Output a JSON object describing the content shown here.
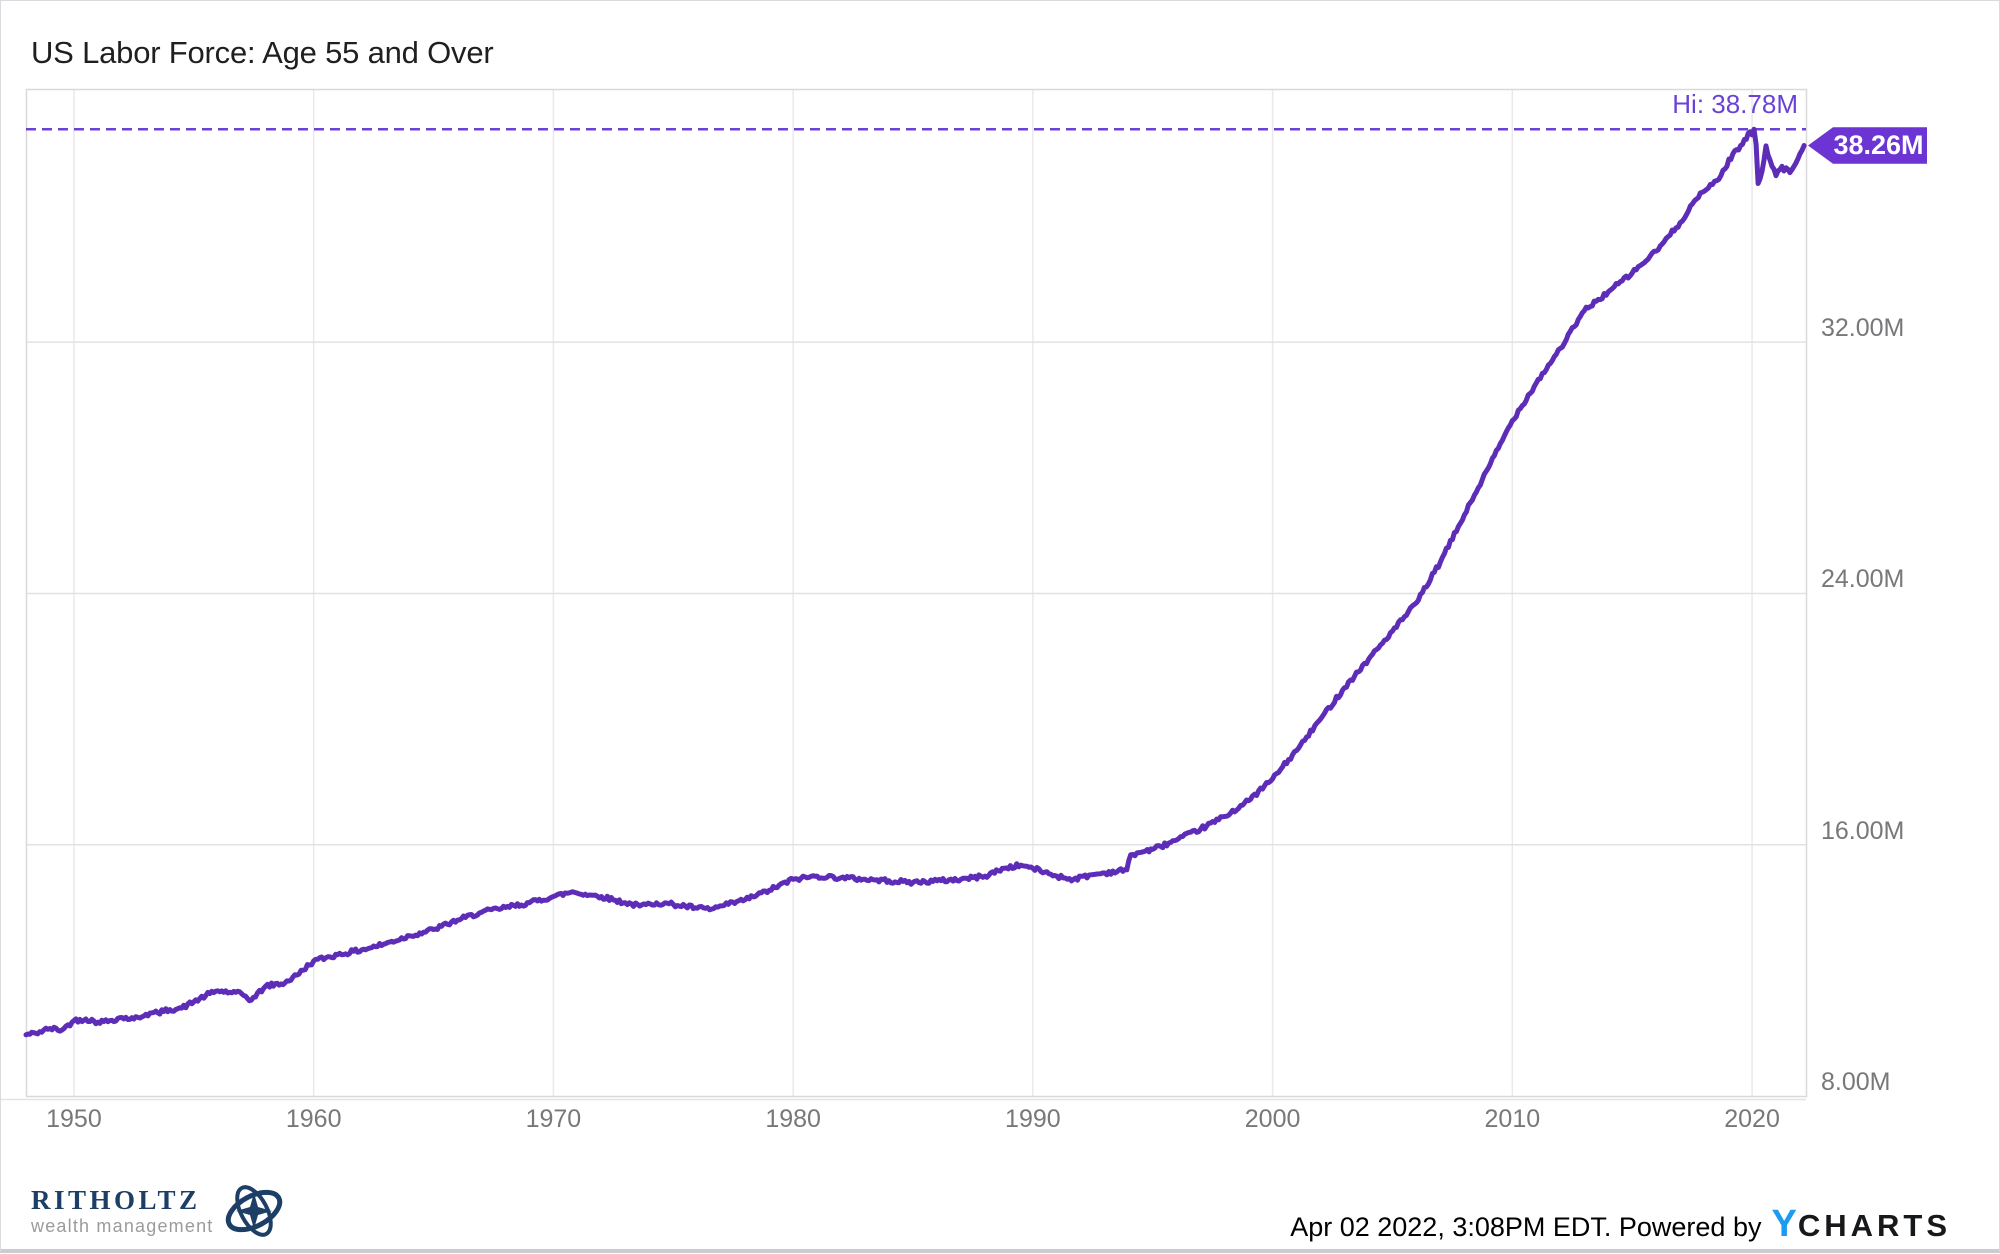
{
  "header": {
    "title": "US Labor Force: Age 55 and Over"
  },
  "annotations": {
    "hi_label": "Hi: 38.78M",
    "last_label": "38.26M"
  },
  "footer": {
    "timestamp": "Apr 02 2022, 3:08PM EDT. Powered by",
    "brand_y": "Y",
    "brand_rest": "CHARTS"
  },
  "logo": {
    "name": "RITHOLTZ",
    "subtitle": "wealth management"
  },
  "colors": {
    "line": "#5d2db8",
    "annotation": "#6b42d6",
    "badge_bg": "#6c34d2",
    "grid_h": "#e2e2e2",
    "grid_v": "#e9e9e9",
    "frame": "#d9d9d9",
    "axis_text": "#77787a",
    "navy": "#1d3f66",
    "ycharts_blue": "#1b9cf0"
  },
  "chart_data": {
    "type": "line",
    "title": "US Labor Force: Age 55 and Over",
    "x_range": [
      1948.0,
      2022.25
    ],
    "ylim": [
      8.0,
      40.06
    ],
    "grid": true,
    "legend_position": "none",
    "x_ticks": [
      {
        "label": "1950",
        "year": 1950
      },
      {
        "label": "1960",
        "year": 1960
      },
      {
        "label": "1970",
        "year": 1970
      },
      {
        "label": "1980",
        "year": 1980
      },
      {
        "label": "1990",
        "year": 1990
      },
      {
        "label": "2000",
        "year": 2000
      },
      {
        "label": "2010",
        "year": 2010
      },
      {
        "label": "2020",
        "year": 2020
      }
    ],
    "y_ticks": [
      {
        "label": "8.00M",
        "value": 8
      },
      {
        "label": "16.00M",
        "value": 16
      },
      {
        "label": "24.00M",
        "value": 24
      },
      {
        "label": "32.00M",
        "value": 32
      }
    ],
    "y_gridlines": [
      16,
      24,
      32
    ],
    "high": {
      "value": 38.78,
      "label": "Hi: 38.78M"
    },
    "last": {
      "value": 38.26,
      "label": "38.26M"
    },
    "unit": "millions of people",
    "series": [
      {
        "name": "US Labor Force: Age 55 and Over",
        "points": [
          [
            1948.0,
            9.95
          ],
          [
            1948.4,
            10.0
          ],
          [
            1949.0,
            10.15
          ],
          [
            1949.5,
            10.1
          ],
          [
            1950.0,
            10.4
          ],
          [
            1950.5,
            10.45
          ],
          [
            1951.0,
            10.35
          ],
          [
            1951.5,
            10.4
          ],
          [
            1952.0,
            10.5
          ],
          [
            1952.5,
            10.45
          ],
          [
            1953.0,
            10.6
          ],
          [
            1953.5,
            10.65
          ],
          [
            1954.0,
            10.75
          ],
          [
            1954.5,
            10.8
          ],
          [
            1955.0,
            11.0
          ],
          [
            1955.5,
            11.2
          ],
          [
            1956.0,
            11.35
          ],
          [
            1956.5,
            11.3
          ],
          [
            1957.0,
            11.25
          ],
          [
            1957.4,
            11.05
          ],
          [
            1958.0,
            11.5
          ],
          [
            1958.8,
            11.6
          ],
          [
            1959.3,
            11.85
          ],
          [
            1960.0,
            12.3
          ],
          [
            1960.5,
            12.4
          ],
          [
            1961.0,
            12.5
          ],
          [
            1962.0,
            12.65
          ],
          [
            1963.0,
            12.85
          ],
          [
            1964.0,
            13.1
          ],
          [
            1965.0,
            13.3
          ],
          [
            1966.0,
            13.6
          ],
          [
            1967.0,
            13.85
          ],
          [
            1968.0,
            14.0
          ],
          [
            1969.0,
            14.15
          ],
          [
            1970.0,
            14.35
          ],
          [
            1970.8,
            14.5
          ],
          [
            1971.5,
            14.4
          ],
          [
            1972.0,
            14.35
          ],
          [
            1973.0,
            14.15
          ],
          [
            1973.6,
            14.05
          ],
          [
            1974.3,
            14.15
          ],
          [
            1975.0,
            14.1
          ],
          [
            1976.0,
            13.98
          ],
          [
            1976.6,
            13.95
          ],
          [
            1977.3,
            14.1
          ],
          [
            1978.0,
            14.25
          ],
          [
            1979.0,
            14.55
          ],
          [
            1980.0,
            14.9
          ],
          [
            1981.0,
            15.0
          ],
          [
            1982.0,
            14.95
          ],
          [
            1983.0,
            14.9
          ],
          [
            1984.0,
            14.85
          ],
          [
            1985.0,
            14.8
          ],
          [
            1986.0,
            14.85
          ],
          [
            1987.0,
            14.9
          ],
          [
            1988.0,
            15.0
          ],
          [
            1988.8,
            15.25
          ],
          [
            1989.5,
            15.35
          ],
          [
            1990.0,
            15.25
          ],
          [
            1991.0,
            15.0
          ],
          [
            1991.7,
            14.9
          ],
          [
            1992.5,
            15.05
          ],
          [
            1993.0,
            15.1
          ],
          [
            1993.92,
            15.2
          ],
          [
            1994.08,
            15.68
          ],
          [
            1994.7,
            15.8
          ],
          [
            1995.0,
            15.85
          ],
          [
            1996.0,
            16.15
          ],
          [
            1997.0,
            16.5
          ],
          [
            1998.0,
            16.9
          ],
          [
            1999.0,
            17.4
          ],
          [
            2000.0,
            18.1
          ],
          [
            2001.0,
            19.0
          ],
          [
            2002.0,
            20.0
          ],
          [
            2003.0,
            21.0
          ],
          [
            2004.0,
            21.9
          ],
          [
            2005.0,
            22.8
          ],
          [
            2006.0,
            23.7
          ],
          [
            2007.0,
            25.0
          ],
          [
            2008.0,
            26.5
          ],
          [
            2009.0,
            28.0
          ],
          [
            2010.0,
            29.5
          ],
          [
            2011.0,
            30.7
          ],
          [
            2012.0,
            31.8
          ],
          [
            2013.0,
            33.0
          ],
          [
            2013.5,
            33.3
          ],
          [
            2014.0,
            33.6
          ],
          [
            2015.0,
            34.2
          ],
          [
            2016.0,
            34.9
          ],
          [
            2017.0,
            35.8
          ],
          [
            2017.6,
            36.5
          ],
          [
            2018.0,
            36.8
          ],
          [
            2018.7,
            37.3
          ],
          [
            2019.2,
            38.0
          ],
          [
            2019.6,
            38.3
          ],
          [
            2019.92,
            38.7
          ],
          [
            2020.0,
            38.6
          ],
          [
            2020.08,
            38.78
          ],
          [
            2020.17,
            38.3
          ],
          [
            2020.25,
            37.05
          ],
          [
            2020.33,
            37.2
          ],
          [
            2020.42,
            37.45
          ],
          [
            2020.5,
            37.8
          ],
          [
            2020.58,
            38.25
          ],
          [
            2020.67,
            37.95
          ],
          [
            2020.75,
            37.8
          ],
          [
            2020.83,
            37.6
          ],
          [
            2020.92,
            37.5
          ],
          [
            2021.0,
            37.3
          ],
          [
            2021.08,
            37.45
          ],
          [
            2021.17,
            37.5
          ],
          [
            2021.25,
            37.6
          ],
          [
            2021.33,
            37.45
          ],
          [
            2021.42,
            37.55
          ],
          [
            2021.5,
            37.5
          ],
          [
            2021.58,
            37.4
          ],
          [
            2021.67,
            37.5
          ],
          [
            2021.75,
            37.6
          ],
          [
            2021.83,
            37.7
          ],
          [
            2021.92,
            37.85
          ],
          [
            2022.0,
            38.0
          ],
          [
            2022.08,
            38.1
          ],
          [
            2022.17,
            38.26
          ]
        ]
      }
    ]
  }
}
